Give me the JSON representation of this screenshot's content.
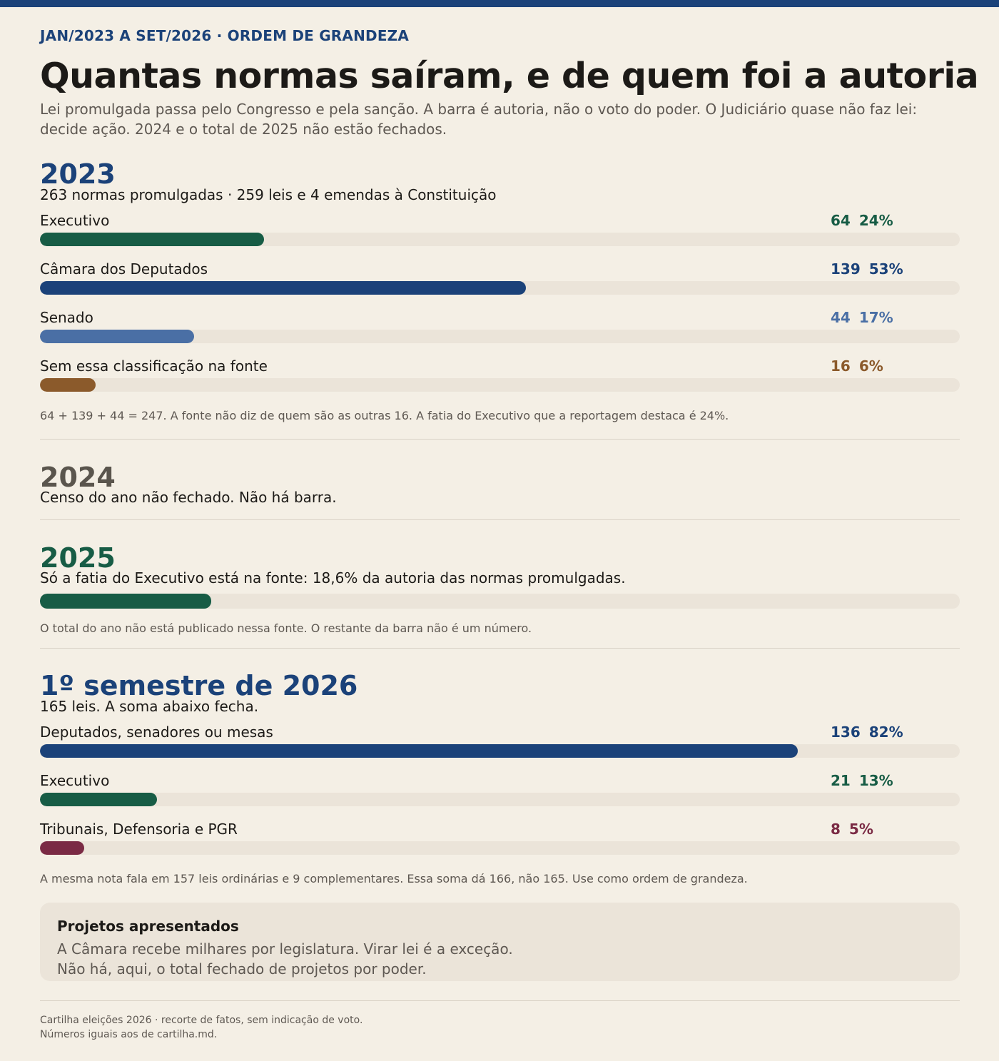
{
  "header": {
    "kicker": "JAN/2023 A SET/2026 · ORDEM DE GRANDEZA",
    "title": "Quantas normas saíram, e de quem foi a autoria",
    "subtitle": "Lei promulgada passa pelo Congresso e pela sanção. A barra é autoria, não o voto do poder. O Judiciário quase não faz lei: decide ação. 2024 e o total de 2025 não estão fechados."
  },
  "colors": {
    "executivo": "#175c45",
    "camara": "#1b4279",
    "senado": "#4a6fa5",
    "sem_classificacao": "#8b5a2b",
    "tribunais": "#7a2a44",
    "year_2024": "#5a554d",
    "track": "#ebe4d9"
  },
  "sections": {
    "y2023": {
      "year": "2023",
      "desc": "263 normas promulgadas · 259 leis e 4 emendas à Constituição",
      "note": "64 + 139 + 44 = 247. A fonte não diz de quem são as outras 16. A fatia do Executivo que a reportagem destaca é 24%."
    },
    "y2024": {
      "year": "2024",
      "desc": "Censo do ano não fechado. Não há barra."
    },
    "y2025": {
      "year": "2025",
      "desc": "Só a fatia do Executivo está na fonte: 18,6% da autoria das normas promulgadas.",
      "note": "O total do ano não está publicado nessa fonte. O restante da barra não é um número."
    },
    "y2026": {
      "year": "1º semestre de 2026",
      "desc": "165 leis. A soma abaixo fecha.",
      "note": "A mesma nota fala em 157 leis ordinárias e 9 complementares. Essa soma dá 166, não 165. Use como ordem de grandeza."
    }
  },
  "box": {
    "title": "Projetos apresentados",
    "line1": "A Câmara recebe milhares por legislatura. Virar lei é a exceção.",
    "line2": "Não há, aqui, o total fechado de projetos por poder."
  },
  "footer": {
    "line1": "Cartilha eleições 2026 · recorte de fatos, sem indicação de voto.",
    "line2": "Números iguais aos de cartilha.md."
  },
  "chart_data": [
    {
      "type": "bar",
      "period": "2023",
      "categories": [
        "Executivo",
        "Câmara dos Deputados",
        "Senado",
        "Sem essa classificação na fonte"
      ],
      "values": [
        64,
        139,
        44,
        16
      ],
      "percent_labels": [
        "24%",
        "53%",
        "17%",
        "6%"
      ],
      "total": 263,
      "xlim": [
        0,
        263
      ]
    },
    {
      "type": "bar",
      "period": "2025",
      "categories": [
        "Executivo"
      ],
      "percent": [
        18.6
      ],
      "xlim": [
        0,
        100
      ]
    },
    {
      "type": "bar",
      "period": "1º semestre de 2026",
      "categories": [
        "Deputados, senadores ou mesas",
        "Executivo",
        "Tribunais, Defensoria e PGR"
      ],
      "values": [
        136,
        21,
        8
      ],
      "percent_labels": [
        "82%",
        "13%",
        "5%"
      ],
      "total": 165,
      "xlim": [
        0,
        165
      ]
    }
  ]
}
